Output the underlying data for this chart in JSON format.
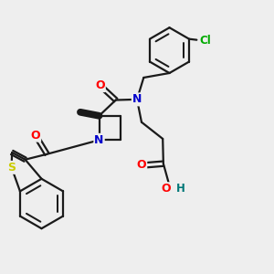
{
  "bg_color": "#eeeeee",
  "line_color": "#1a1a1a",
  "bond_lw": 1.6,
  "atom_colors": {
    "O": "#ff0000",
    "N": "#0000cc",
    "S": "#cccc00",
    "Cl": "#00aa00",
    "H": "#007777"
  },
  "fig_size": [
    3.0,
    3.0
  ],
  "dpi": 100
}
